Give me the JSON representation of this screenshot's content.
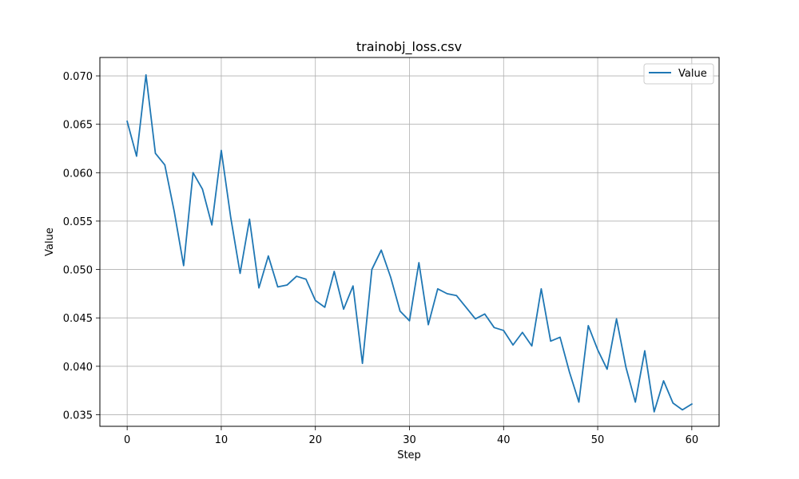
{
  "chart_data": {
    "type": "line",
    "title": "trainobj_loss.csv",
    "xlabel": "Step",
    "ylabel": "Value",
    "xlim": [
      -2.9,
      62.9
    ],
    "ylim": [
      0.0338,
      0.0719
    ],
    "xticks": [
      0,
      10,
      20,
      30,
      40,
      50,
      60
    ],
    "yticks": [
      0.035,
      0.04,
      0.045,
      0.05,
      0.055,
      0.06,
      0.065,
      0.07
    ],
    "ytick_labels": [
      "0.035",
      "0.040",
      "0.045",
      "0.050",
      "0.055",
      "0.060",
      "0.065",
      "0.070"
    ],
    "grid": true,
    "legend_position": "top-right",
    "series": [
      {
        "name": "Value",
        "color": "#1f77b4",
        "x": [
          0,
          1,
          2,
          3,
          4,
          5,
          6,
          7,
          8,
          9,
          10,
          11,
          12,
          13,
          14,
          15,
          16,
          17,
          18,
          19,
          20,
          21,
          22,
          23,
          24,
          25,
          26,
          27,
          28,
          29,
          30,
          31,
          32,
          33,
          34,
          35,
          36,
          37,
          38,
          39,
          40,
          41,
          42,
          43,
          44,
          45,
          46,
          47,
          48,
          49,
          50,
          51,
          52,
          53,
          54,
          55,
          56,
          57,
          58,
          59,
          60
        ],
        "y": [
          0.0653,
          0.0617,
          0.0701,
          0.062,
          0.0608,
          0.056,
          0.0504,
          0.06,
          0.0583,
          0.0546,
          0.0623,
          0.0554,
          0.0496,
          0.0552,
          0.0481,
          0.0514,
          0.0482,
          0.0484,
          0.0493,
          0.049,
          0.0468,
          0.0461,
          0.0498,
          0.0459,
          0.0483,
          0.0403,
          0.05,
          0.052,
          0.0492,
          0.0457,
          0.0447,
          0.0507,
          0.0443,
          0.048,
          0.0475,
          0.0473,
          0.0461,
          0.0449,
          0.0454,
          0.044,
          0.0437,
          0.0422,
          0.0435,
          0.0421,
          0.048,
          0.0426,
          0.043,
          0.0394,
          0.0363,
          0.0442,
          0.0417,
          0.0397,
          0.0449,
          0.0399,
          0.0363,
          0.0416,
          0.0353,
          0.0385,
          0.0362,
          0.0355,
          0.0361
        ]
      }
    ]
  }
}
